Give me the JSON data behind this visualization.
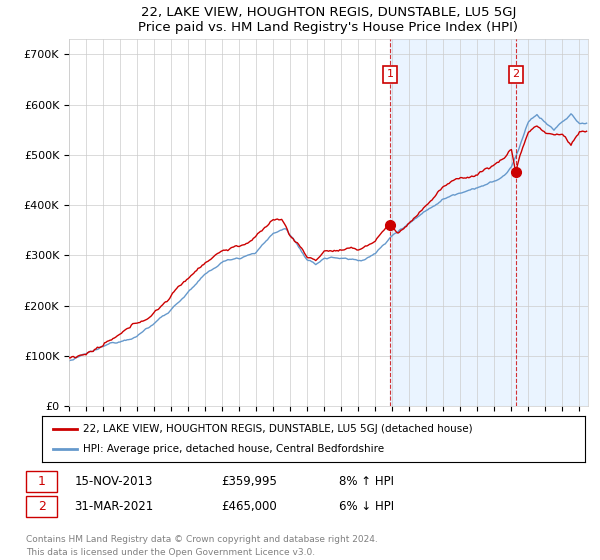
{
  "title": "22, LAKE VIEW, HOUGHTON REGIS, DUNSTABLE, LU5 5GJ",
  "subtitle": "Price paid vs. HM Land Registry's House Price Index (HPI)",
  "ylabel_ticks": [
    "£0",
    "£100K",
    "£200K",
    "£300K",
    "£400K",
    "£500K",
    "£600K",
    "£700K"
  ],
  "ytick_values": [
    0,
    100000,
    200000,
    300000,
    400000,
    500000,
    600000,
    700000
  ],
  "ylim": [
    0,
    730000
  ],
  "xlim_start": 1995.0,
  "xlim_end": 2025.5,
  "hpi_color": "#6699cc",
  "price_color": "#cc0000",
  "vline_color": "#cc0000",
  "sale1_x": 2013.88,
  "sale1_y": 359995,
  "sale1_label": "1",
  "sale2_x": 2021.25,
  "sale2_y": 465000,
  "sale2_label": "2",
  "legend_entry1": "22, LAKE VIEW, HOUGHTON REGIS, DUNSTABLE, LU5 5GJ (detached house)",
  "legend_entry2": "HPI: Average price, detached house, Central Bedfordshire",
  "note1_label": "1",
  "note1_date": "15-NOV-2013",
  "note1_price": "£359,995",
  "note1_hpi": "8% ↑ HPI",
  "note2_label": "2",
  "note2_date": "31-MAR-2021",
  "note2_price": "£465,000",
  "note2_hpi": "6% ↓ HPI",
  "footer": "Contains HM Land Registry data © Crown copyright and database right 2024.\nThis data is licensed under the Open Government Licence v3.0.",
  "background_shading_start": 2013.88,
  "background_shading_end": 2025.5,
  "background_shading_color": "#ddeeff"
}
